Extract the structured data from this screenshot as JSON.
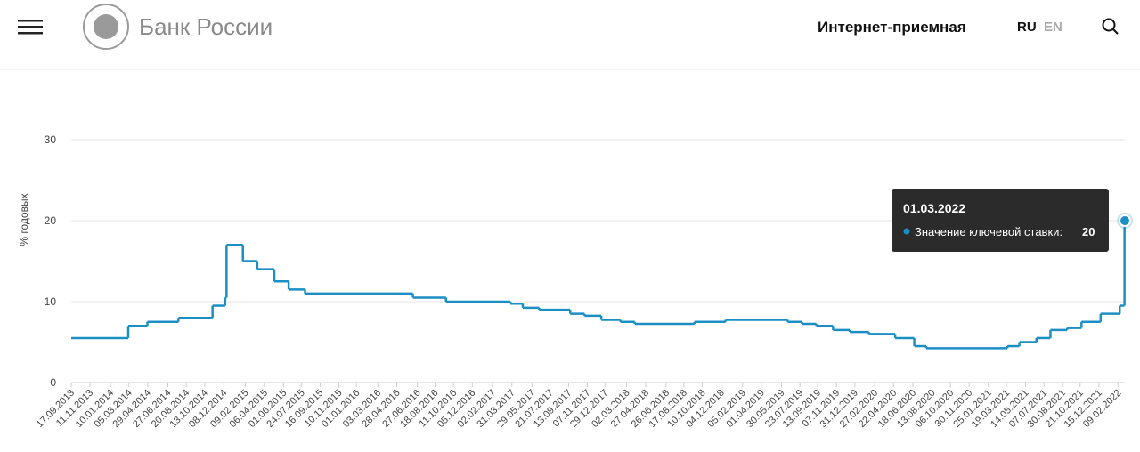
{
  "header": {
    "logo": "Банк России",
    "nav": "Интернет-приемная",
    "lang_ru": "RU",
    "lang_en": "EN"
  },
  "chart_data": {
    "type": "step-line",
    "y_label": "% годовых",
    "series_name": "Значение ключевой ставки:",
    "color": "#1b8fc4",
    "x": [
      "17.09.2013",
      "03.03.2014",
      "28.04.2014",
      "28.07.2014",
      "05.11.2014",
      "12.12.2014",
      "16.12.2014",
      "02.02.2015",
      "16.03.2015",
      "05.05.2015",
      "16.06.2015",
      "03.08.2015",
      "14.06.2016",
      "19.09.2016",
      "27.03.2017",
      "02.05.2017",
      "19.06.2017",
      "18.09.2017",
      "30.10.2017",
      "18.12.2017",
      "12.02.2018",
      "26.03.2018",
      "17.09.2018",
      "17.12.2018",
      "17.06.2019",
      "29.07.2019",
      "09.09.2019",
      "28.10.2019",
      "16.12.2019",
      "10.02.2020",
      "27.04.2020",
      "22.06.2020",
      "27.07.2020",
      "22.03.2021",
      "26.04.2021",
      "15.06.2021",
      "26.07.2021",
      "13.09.2021",
      "25.10.2021",
      "20.12.2021",
      "14.02.2022",
      "28.02.2022",
      "01.03.2022"
    ],
    "values": [
      5.5,
      7,
      7.5,
      8,
      9.5,
      10.5,
      17,
      15,
      14,
      12.5,
      11.5,
      11,
      10.5,
      10,
      9.75,
      9.25,
      9,
      8.5,
      8.25,
      7.75,
      7.5,
      7.25,
      7.5,
      7.75,
      7.5,
      7.25,
      7,
      6.5,
      6.25,
      6,
      5.5,
      4.5,
      4.25,
      4.5,
      5,
      5.5,
      6.5,
      6.75,
      7.5,
      8.5,
      9.5,
      20,
      20
    ],
    "xlim": [
      "17.09.2013",
      "01.03.2022"
    ],
    "xticks": [
      "17.09.2013",
      "11.11.2013",
      "10.01.2014",
      "05.03.2014",
      "29.04.2014",
      "27.06.2014",
      "20.08.2014",
      "13.10.2014",
      "08.12.2014",
      "09.02.2015",
      "06.04.2015",
      "01.06.2015",
      "24.07.2015",
      "16.09.2015",
      "10.11.2015",
      "01.01.2016",
      "03.03.2016",
      "28.04.2016",
      "27.06.2016",
      "18.08.2016",
      "11.10.2016",
      "05.12.2016",
      "02.02.2017",
      "31.03.2017",
      "29.05.2017",
      "21.07.2017",
      "13.09.2017",
      "07.11.2017",
      "29.12.2017",
      "02.03.2018",
      "27.04.2018",
      "26.06.2018",
      "17.08.2018",
      "10.10.2018",
      "04.12.2018",
      "05.02.2019",
      "01.04.2019",
      "30.05.2019",
      "23.07.2019",
      "13.09.2019",
      "07.11.2019",
      "31.12.2019",
      "27.02.2020",
      "22.04.2020",
      "18.06.2020",
      "13.08.2020",
      "06.10.2020",
      "30.11.2020",
      "25.01.2021",
      "19.03.2021",
      "14.05.2021",
      "07.07.2021",
      "30.08.2021",
      "21.10.2021",
      "15.12.2021",
      "09.02.2022"
    ],
    "ylim": [
      0,
      35
    ],
    "yticks": [
      0,
      10,
      20,
      30
    ],
    "grid": true
  }
}
